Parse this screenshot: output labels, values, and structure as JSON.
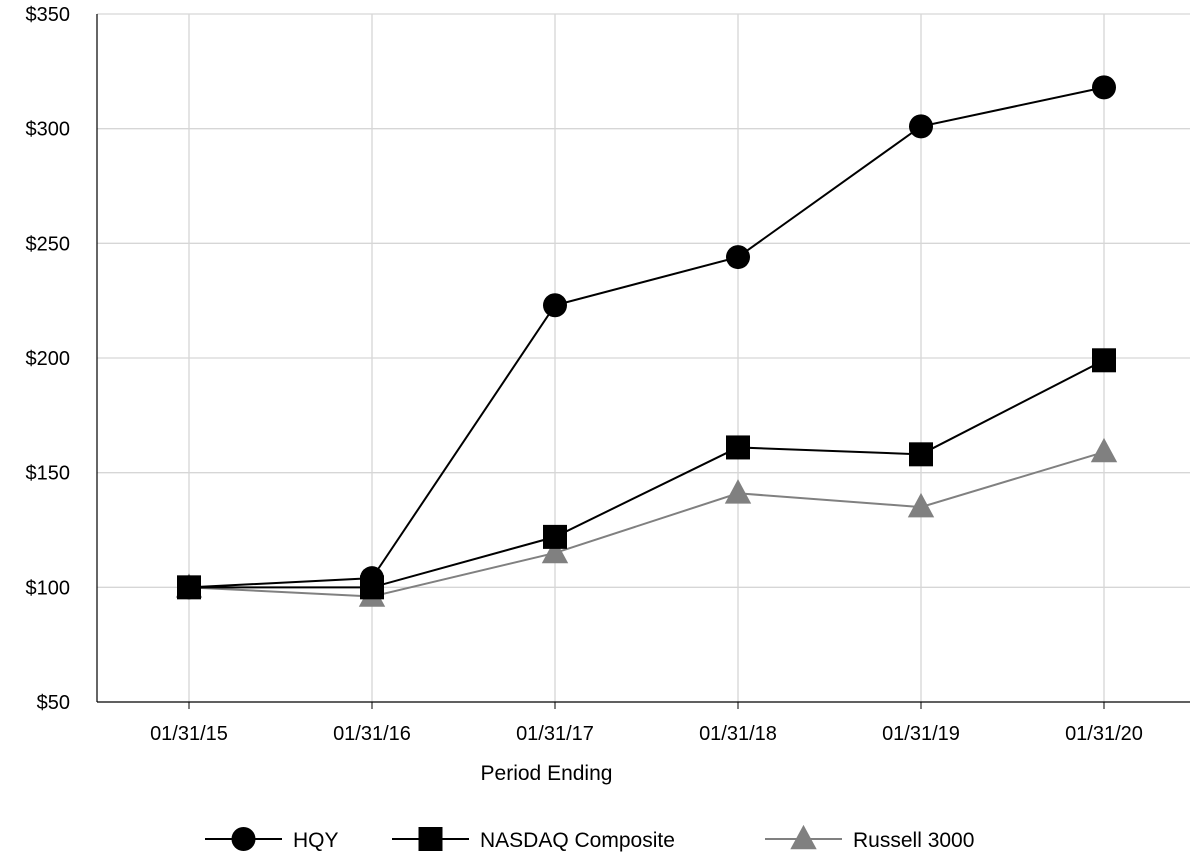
{
  "chart_data": {
    "type": "line",
    "title": "",
    "xlabel": "Period Ending",
    "ylabel": "",
    "categories": [
      "01/31/15",
      "01/31/16",
      "01/31/17",
      "01/31/18",
      "01/31/19",
      "01/31/20"
    ],
    "yticks": [
      "$50",
      "$100",
      "$150",
      "$200",
      "$250",
      "$300",
      "$350"
    ],
    "ylim": [
      50,
      350
    ],
    "grid": true,
    "legend_position": "bottom",
    "series": [
      {
        "name": "HQY",
        "values": [
          100,
          104,
          223,
          244,
          301,
          318
        ],
        "color": "#000000",
        "marker": "circle"
      },
      {
        "name": "NASDAQ Composite",
        "values": [
          100,
          100,
          122,
          161,
          158,
          199
        ],
        "color": "#000000",
        "marker": "square"
      },
      {
        "name": "Russell 3000",
        "values": [
          100,
          96,
          115,
          141,
          135,
          159
        ],
        "color": "#808080",
        "marker": "triangle"
      }
    ]
  }
}
